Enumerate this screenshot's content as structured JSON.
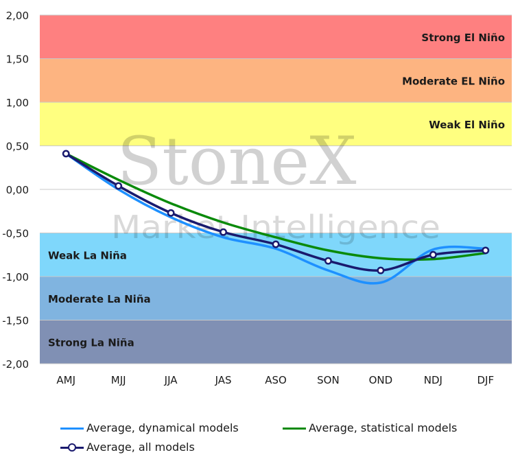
{
  "chart_data": {
    "type": "line",
    "categories": [
      "AMJ",
      "MJJ",
      "JJA",
      "JAS",
      "ASO",
      "SON",
      "OND",
      "NDJ",
      "DJF"
    ],
    "ylim": [
      -2.0,
      2.0
    ],
    "yticks": [
      "2,00",
      "1,50",
      "1,00",
      "0,50",
      "0,00",
      "-0,50",
      "-1,00",
      "-1,50",
      "-2,00"
    ],
    "bands": [
      {
        "label": "Strong El Niño",
        "from": 1.5,
        "to": 2.0,
        "color": "#fe8080",
        "align": "right"
      },
      {
        "label": "Moderate EL Niño",
        "from": 1.0,
        "to": 1.5,
        "color": "#fdb481",
        "align": "right"
      },
      {
        "label": "Weak El Niño",
        "from": 0.5,
        "to": 1.0,
        "color": "#ffff80",
        "align": "right"
      },
      {
        "label": "Weak La Niña",
        "from": -1.0,
        "to": -0.5,
        "color": "#7fd7fb",
        "align": "left"
      },
      {
        "label": "Moderate La Niña",
        "from": -1.5,
        "to": -1.0,
        "color": "#80b4e0",
        "align": "left"
      },
      {
        "label": "Strong La Niña",
        "from": -2.0,
        "to": -1.5,
        "color": "#8090b4",
        "align": "left"
      }
    ],
    "series": [
      {
        "name": "Average, dynamical models",
        "color": "#1e90ff",
        "markers": false,
        "values": [
          0.41,
          0.0,
          -0.32,
          -0.55,
          -0.68,
          -0.93,
          -1.07,
          -0.69,
          -0.68
        ]
      },
      {
        "name": "Average, statistical models",
        "color": "#0a8a0a",
        "markers": false,
        "values": [
          0.41,
          0.11,
          -0.16,
          -0.38,
          -0.55,
          -0.7,
          -0.79,
          -0.8,
          -0.73
        ]
      },
      {
        "name": "Average, all models",
        "color": "#1a1a6e",
        "markers": true,
        "values": [
          0.41,
          0.04,
          -0.27,
          -0.49,
          -0.63,
          -0.82,
          -0.93,
          -0.75,
          -0.7
        ]
      }
    ],
    "watermark": {
      "line1": "StoneX",
      "line2": "Market Intelligence"
    },
    "grid": true,
    "legend_position": "bottom"
  }
}
